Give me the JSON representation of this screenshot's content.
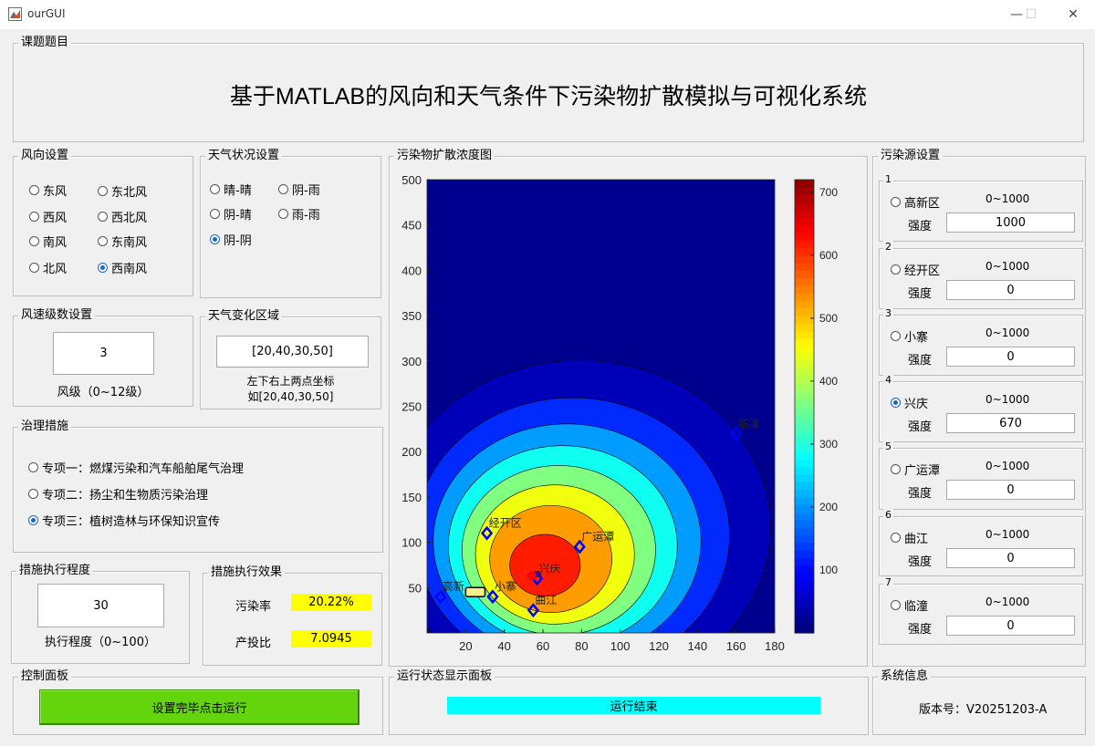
{
  "window": {
    "title": "ourGUI",
    "minimize": "—",
    "maximize": "☐",
    "close": "✕"
  },
  "topic": {
    "label": "课题题目",
    "text": "基于MATLAB的风向和天气条件下污染物扩散模拟与可视化系统"
  },
  "wind_direction": {
    "label": "风向设置",
    "options": [
      "东风",
      "东北风",
      "西风",
      "西北风",
      "南风",
      "东南风",
      "北风",
      "西南风"
    ],
    "selected": "西南风"
  },
  "weather": {
    "label": "天气状况设置",
    "options": [
      "晴-晴",
      "阴-雨",
      "阴-晴",
      "雨-雨",
      "阴-阴"
    ],
    "selected": "阴-阴"
  },
  "wind_speed": {
    "label": "风速级数设置",
    "value": "3",
    "hint": "风级（0~12级）"
  },
  "weather_region": {
    "label": "天气变化区域",
    "value": "[20,40,30,50]",
    "hint1": "左下右上两点坐标",
    "hint2": "如[20,40,30,50]"
  },
  "measures": {
    "label": "治理措施",
    "options": [
      "专项一：燃煤污染和汽车船舶尾气治理",
      "专项二：扬尘和生物质污染治理",
      "专项三：植树造林与环保知识宣传"
    ],
    "selected": "专项三：植树造林与环保知识宣传"
  },
  "execution": {
    "label": "措施执行程度",
    "value": "30",
    "hint": "执行程度（0~100）"
  },
  "effect": {
    "label": "措施执行效果",
    "pollution_label": "污染率",
    "pollution_value": "20.22%",
    "ratio_label": "产投比",
    "ratio_value": "7.0945"
  },
  "control": {
    "label": "控制面板",
    "run_button": "设置完毕点击运行"
  },
  "plot_panel": {
    "label": "污染物扩散浓度图"
  },
  "status": {
    "label": "运行状态显示面板",
    "text": "运行结束"
  },
  "sources": {
    "label": "污染源设置",
    "range_text": "0~1000",
    "strength_label": "强度",
    "items": [
      {
        "num": "1",
        "name": "高新区",
        "strength": "1000",
        "checked": false
      },
      {
        "num": "2",
        "name": "经开区",
        "strength": "0",
        "checked": false
      },
      {
        "num": "3",
        "name": "小寨",
        "strength": "0",
        "checked": false
      },
      {
        "num": "4",
        "name": "兴庆",
        "strength": "670",
        "checked": true
      },
      {
        "num": "5",
        "name": "广运潭",
        "strength": "0",
        "checked": false
      },
      {
        "num": "6",
        "name": "曲江",
        "strength": "0",
        "checked": false
      },
      {
        "num": "7",
        "name": "临潼",
        "strength": "0",
        "checked": false
      }
    ]
  },
  "sysinfo": {
    "label": "系统信息",
    "version": "版本号：V20251203-A"
  },
  "chart_data": {
    "type": "contour",
    "xlim": [
      0,
      180
    ],
    "ylim": [
      0,
      500
    ],
    "x_ticks": [
      20,
      40,
      60,
      80,
      100,
      120,
      140,
      160,
      180
    ],
    "y_ticks": [
      50,
      100,
      150,
      200,
      250,
      300,
      350,
      400,
      450,
      500
    ],
    "colorbar_ticks": [
      100,
      200,
      300,
      400,
      500,
      600,
      700
    ],
    "colorbar_range": [
      0,
      720
    ],
    "peak": {
      "x": 57,
      "y": 65,
      "value": 700
    },
    "contour_levels": [
      720,
      650,
      560,
      480,
      400,
      320,
      240,
      160,
      80
    ],
    "sites": [
      {
        "name": "高新区",
        "x": 7,
        "y": 40
      },
      {
        "name": "经开区",
        "x": 31,
        "y": 110
      },
      {
        "name": "小寨",
        "x": 34,
        "y": 40
      },
      {
        "name": "兴庆",
        "x": 57,
        "y": 60
      },
      {
        "name": "广运潭",
        "x": 79,
        "y": 95
      },
      {
        "name": "曲江",
        "x": 55,
        "y": 25
      },
      {
        "name": "临潼",
        "x": 160,
        "y": 220
      }
    ],
    "site_labels": [
      "高新",
      "经开区",
      "小寨",
      "兴庆",
      "广运潭",
      "曲江",
      "临潼"
    ],
    "weather_rect": [
      20,
      40,
      30,
      50
    ],
    "colors": {
      "marker": "#0000ff",
      "peak_marker": "#ff0000",
      "rect_fill": "#f5f08a"
    }
  }
}
